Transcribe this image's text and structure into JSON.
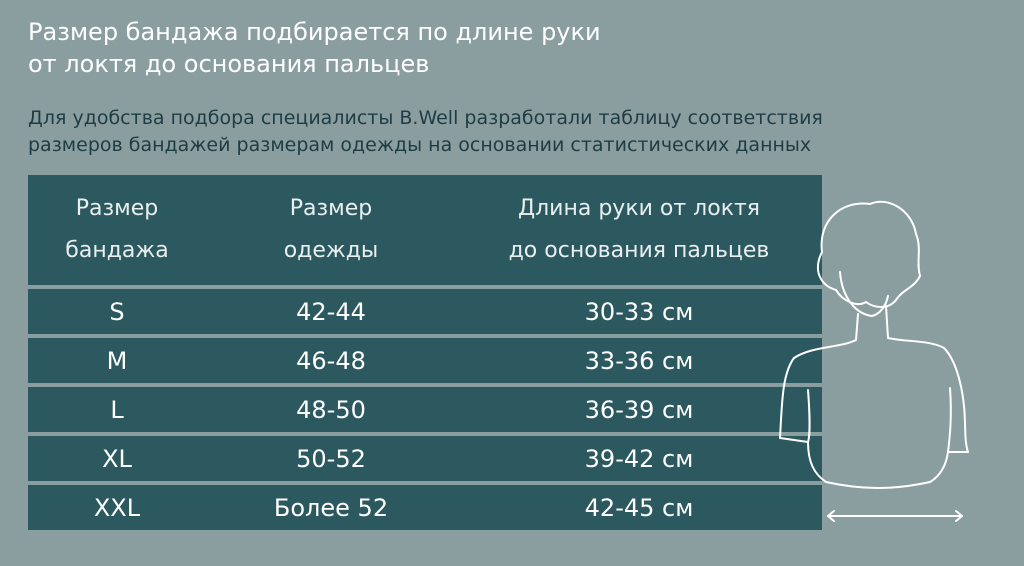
{
  "header": {
    "title_line1": "Размер бандажа подбирается по длине руки",
    "title_line2": "от локтя  до основания пальцев",
    "subtitle_line1": "Для удобства подбора специалисты B.Well разработали таблицу соответствия",
    "subtitle_line2": "размеров бандажей размерам одежды на основании статистических данных"
  },
  "table": {
    "headers": [
      {
        "line1": "Размер",
        "line2": "бандажа"
      },
      {
        "line1": "Размер",
        "line2": "одежды"
      },
      {
        "line1": "Длина руки от локтя",
        "line2": "до основания пальцев"
      }
    ],
    "rows": [
      {
        "size": "S",
        "clothing": "42-44",
        "length": "30-33 см"
      },
      {
        "size": "M",
        "clothing": "46-48",
        "length": "33-36 см"
      },
      {
        "size": "L",
        "clothing": "48-50",
        "length": "36-39 см"
      },
      {
        "size": "XL",
        "clothing": "50-52",
        "length": "39-42 см"
      },
      {
        "size": "XXL",
        "clothing": "Более 52",
        "length": "42-45 см"
      }
    ]
  },
  "colors": {
    "background": "#8a9ea0",
    "table_fill": "#2c5960",
    "title_text": "#ffffff",
    "subtitle_text": "#1e3c43"
  },
  "illustration": {
    "icon": "woman-silhouette-with-arm-length-arrow-icon"
  }
}
